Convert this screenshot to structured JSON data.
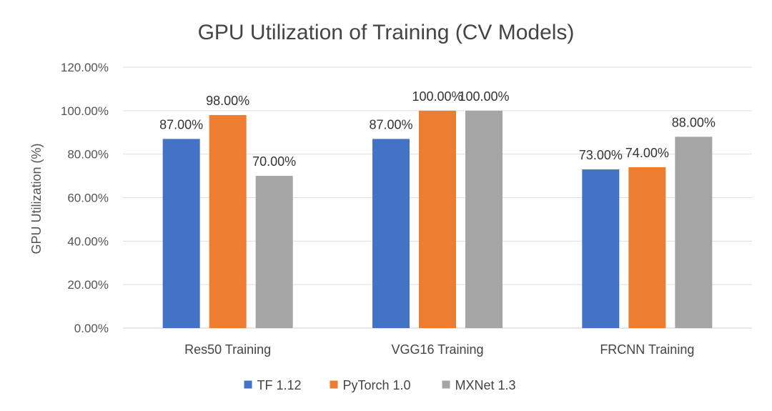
{
  "chart_data": {
    "type": "bar",
    "title": "GPU Utilization of Training (CV Models)",
    "xlabel": "",
    "ylabel": "GPU Utilization (%)",
    "ylim": [
      0,
      120
    ],
    "yticks": [
      "0.00%",
      "20.00%",
      "40.00%",
      "60.00%",
      "80.00%",
      "100.00%",
      "120.00%"
    ],
    "grid": true,
    "legend_position": "bottom",
    "categories": [
      "Res50 Training",
      "VGG16 Training",
      "FRCNN Training"
    ],
    "series": [
      {
        "name": "TF 1.12",
        "color": "#4472C4",
        "values": [
          87,
          87,
          73
        ],
        "labels": [
          "87.00%",
          "87.00%",
          "73.00%"
        ]
      },
      {
        "name": "PyTorch 1.0",
        "color": "#ED7D31",
        "values": [
          98,
          100,
          74
        ],
        "labels": [
          "98.00%",
          "100.00%",
          "74.00%"
        ]
      },
      {
        "name": "MXNet 1.3",
        "color": "#A5A5A5",
        "values": [
          70,
          100,
          88
        ],
        "labels": [
          "70.00%",
          "100.00%",
          "88.00%"
        ]
      }
    ]
  }
}
